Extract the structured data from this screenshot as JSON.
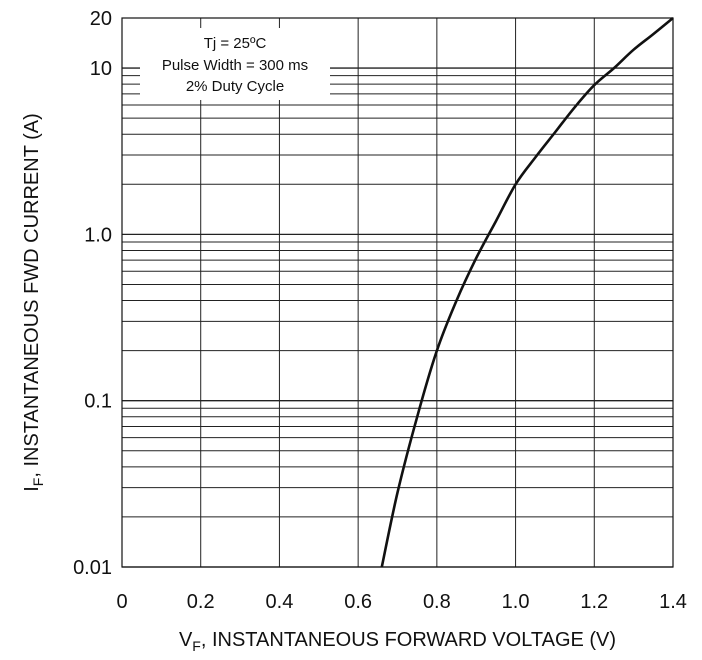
{
  "chart_data": {
    "type": "line",
    "xlabel": {
      "main": "V",
      "sub": "F",
      "rest": ", INSTANTANEOUS FORWARD VOLTAGE (V)"
    },
    "ylabel": {
      "main": "I",
      "sub": "F",
      "rest": ",  INSTANTANEOUS FWD CURRENT (A)"
    },
    "xlim": [
      0,
      1.4
    ],
    "ylim": [
      0.01,
      20
    ],
    "yscale": "log",
    "grid": true,
    "x_ticks": [
      {
        "value": 0,
        "label": "0"
      },
      {
        "value": 0.2,
        "label": "0.2"
      },
      {
        "value": 0.4,
        "label": "0.4"
      },
      {
        "value": 0.6,
        "label": "0.6"
      },
      {
        "value": 0.8,
        "label": "0.8"
      },
      {
        "value": 1.0,
        "label": "1.0"
      },
      {
        "value": 1.2,
        "label": "1.2"
      },
      {
        "value": 1.4,
        "label": "1.4"
      }
    ],
    "y_ticks": [
      {
        "value": 0.01,
        "label": "0.01"
      },
      {
        "value": 0.1,
        "label": "0.1"
      },
      {
        "value": 1,
        "label": "1.0"
      },
      {
        "value": 10,
        "label": "10"
      },
      {
        "value": 20,
        "label": "20"
      }
    ],
    "annotation": [
      "Tj = 25ºC",
      "Pulse Width = 300 ms",
      "2% Duty Cycle"
    ],
    "series": [
      {
        "x": [
          0.66,
          0.7,
          0.75,
          0.8,
          0.85,
          0.9,
          0.95,
          1.0,
          1.05,
          1.1,
          1.15,
          1.2,
          1.25,
          1.3,
          1.35,
          1.4
        ],
        "y": [
          0.01,
          0.028,
          0.08,
          0.2,
          0.4,
          0.72,
          1.2,
          2.0,
          2.9,
          4.1,
          5.8,
          7.9,
          10.0,
          12.9,
          16.0,
          20.0
        ]
      }
    ]
  }
}
